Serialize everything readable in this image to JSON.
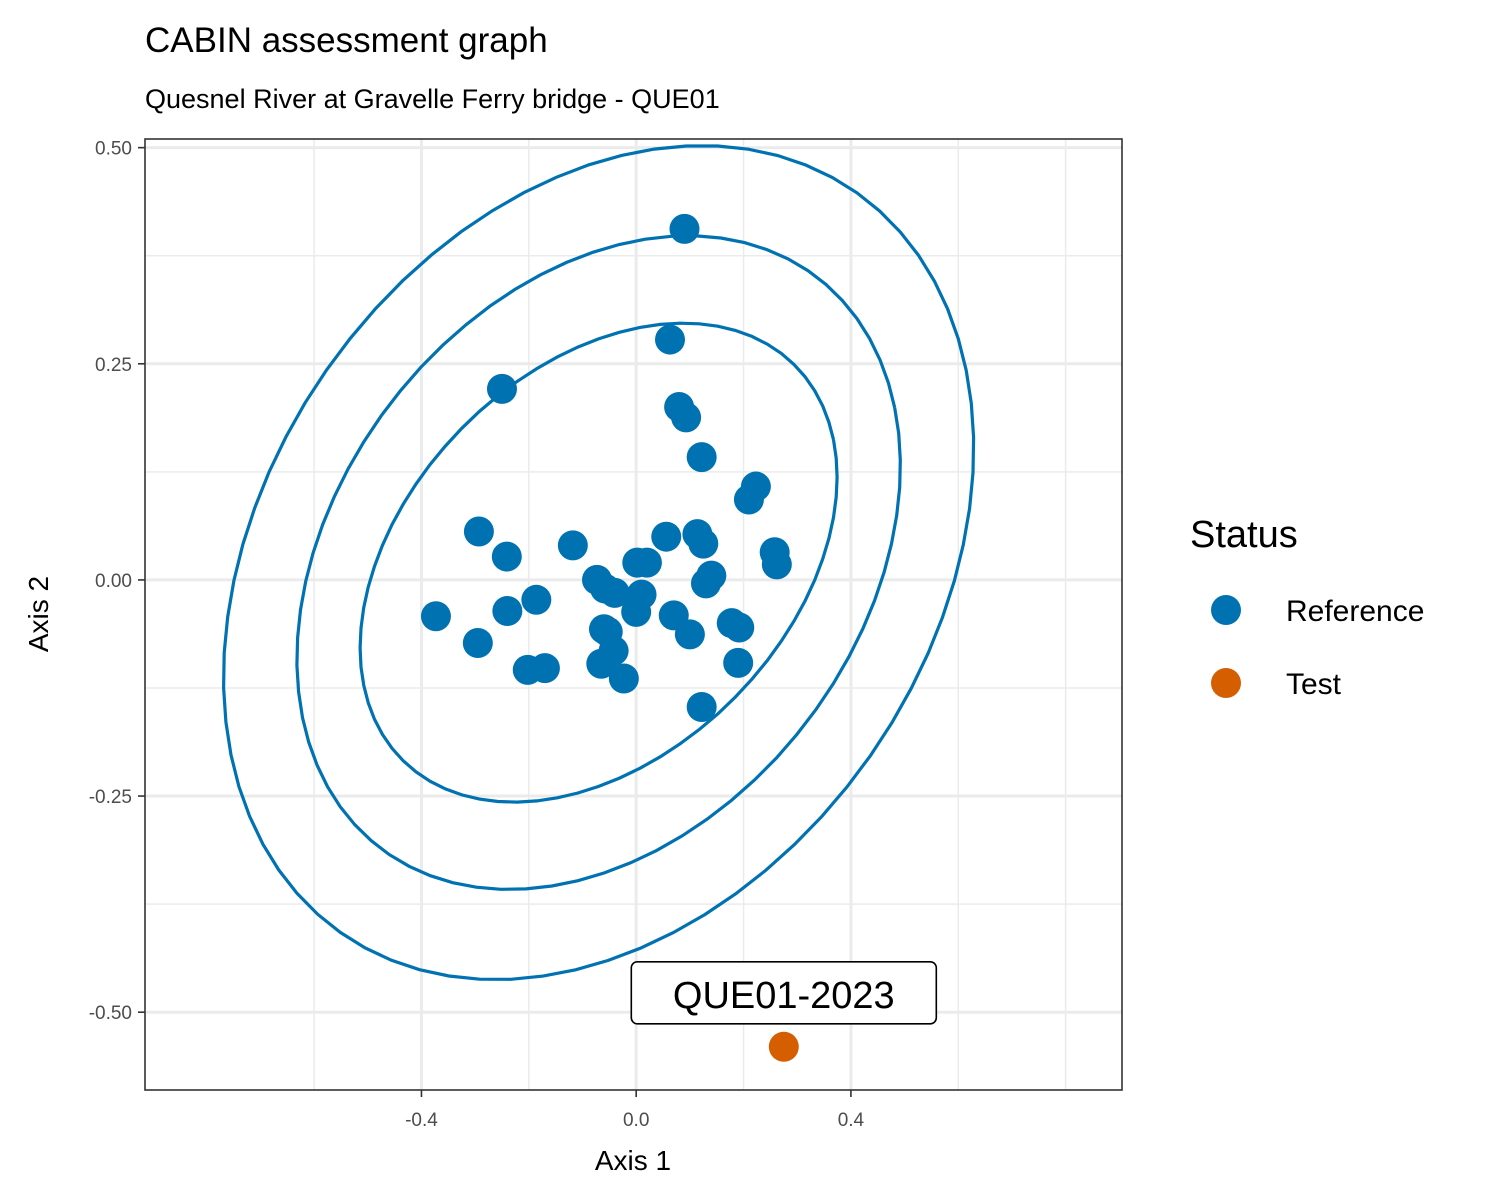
{
  "chart_data": {
    "type": "scatter",
    "title": "CABIN assessment graph",
    "subtitle": "Quesnel River at Gravelle Ferry bridge - QUE01",
    "xlabel": "Axis 1",
    "ylabel": "Axis 2",
    "xlim": [
      -0.915,
      0.905
    ],
    "ylim": [
      -0.59,
      0.51
    ],
    "x_ticks": [
      -0.4,
      0.0,
      0.4
    ],
    "x_tick_labels": [
      "-0.4",
      "0.0",
      "0.4"
    ],
    "y_ticks": [
      0.5,
      0.25,
      0.0,
      -0.25,
      -0.5
    ],
    "y_tick_labels": [
      "0.50",
      "0.25",
      "0.00",
      "-0.25",
      "-0.50"
    ],
    "grid": true,
    "colors": {
      "Reference": "#0072B2",
      "Test": "#D55E00"
    },
    "legend": {
      "title": "Status",
      "position": "right",
      "entries": [
        "Reference",
        "Test"
      ]
    },
    "ellipses": [
      {
        "name": "inner",
        "center": [
          -0.07,
          0.02
        ],
        "rx": 0.46,
        "ry": 0.25,
        "angle_deg": 18
      },
      {
        "name": "middle",
        "center": [
          -0.07,
          0.02
        ],
        "rx": 0.58,
        "ry": 0.35,
        "angle_deg": 18
      },
      {
        "name": "outer",
        "center": [
          -0.07,
          0.02
        ],
        "rx": 0.72,
        "ry": 0.45,
        "angle_deg": 18
      }
    ],
    "series": [
      {
        "name": "Reference",
        "points": [
          [
            0.09,
            0.406
          ],
          [
            0.063,
            0.278
          ],
          [
            -0.25,
            0.221
          ],
          [
            0.08,
            0.2
          ],
          [
            0.093,
            0.188
          ],
          [
            0.122,
            0.142
          ],
          [
            0.223,
            0.108
          ],
          [
            0.21,
            0.093
          ],
          [
            -0.293,
            0.056
          ],
          [
            -0.241,
            0.027
          ],
          [
            -0.118,
            0.04
          ],
          [
            0.056,
            0.05
          ],
          [
            0.114,
            0.053
          ],
          [
            0.125,
            0.042
          ],
          [
            0.258,
            0.032
          ],
          [
            0.262,
            0.018
          ],
          [
            0.002,
            0.02
          ],
          [
            0.02,
            0.02
          ],
          [
            -0.073,
            0.0
          ],
          [
            -0.058,
            -0.01
          ],
          [
            -0.04,
            -0.015
          ],
          [
            0.01,
            -0.017
          ],
          [
            0.14,
            0.005
          ],
          [
            0.13,
            -0.004
          ],
          [
            -0.373,
            -0.042
          ],
          [
            -0.24,
            -0.036
          ],
          [
            -0.186,
            -0.023
          ],
          [
            0.0,
            -0.037
          ],
          [
            0.07,
            -0.041
          ],
          [
            0.178,
            -0.05
          ],
          [
            0.192,
            -0.055
          ],
          [
            -0.295,
            -0.073
          ],
          [
            -0.053,
            -0.06
          ],
          [
            -0.06,
            -0.057
          ],
          [
            0.1,
            -0.063
          ],
          [
            -0.042,
            -0.082
          ],
          [
            -0.065,
            -0.097
          ],
          [
            -0.023,
            -0.114
          ],
          [
            0.19,
            -0.096
          ],
          [
            -0.202,
            -0.104
          ],
          [
            -0.17,
            -0.102
          ],
          [
            0.122,
            -0.147
          ]
        ]
      },
      {
        "name": "Test",
        "points": [
          [
            0.275,
            -0.54
          ]
        ]
      }
    ],
    "annotations": [
      {
        "text": "QUE01-2023",
        "x": 0.275,
        "y": -0.54
      }
    ]
  }
}
